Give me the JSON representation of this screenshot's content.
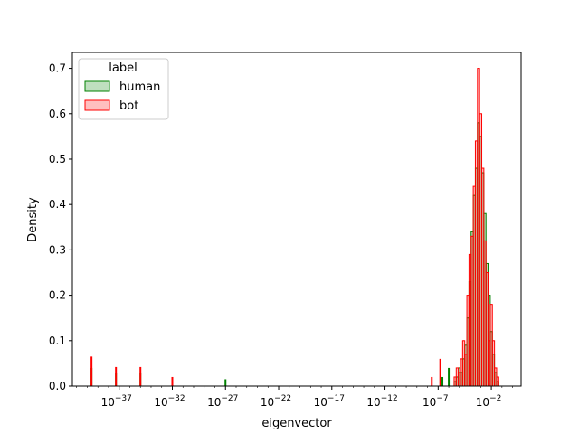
{
  "chart_data": {
    "type": "histogram",
    "title": "",
    "xlabel": "eigenvector",
    "ylabel": "Density",
    "xscale": "log",
    "xlim_log10": [
      -41.4,
      0.8
    ],
    "ylim": [
      0,
      0.735
    ],
    "grid": false,
    "x_ticks": [
      {
        "exp": -37,
        "base": "10",
        "sup": "−37"
      },
      {
        "exp": -32,
        "base": "10",
        "sup": "−32"
      },
      {
        "exp": -27,
        "base": "10",
        "sup": "−27"
      },
      {
        "exp": -22,
        "base": "10",
        "sup": "−22"
      },
      {
        "exp": -17,
        "base": "10",
        "sup": "−17"
      },
      {
        "exp": -12,
        "base": "10",
        "sup": "−12"
      },
      {
        "exp": -7,
        "base": "10",
        "sup": "−7"
      },
      {
        "exp": -2,
        "base": "10",
        "sup": "−2"
      }
    ],
    "y_ticks": [
      "0.0",
      "0.1",
      "0.2",
      "0.3",
      "0.4",
      "0.5",
      "0.6",
      "0.7"
    ],
    "y_tick_values": [
      0,
      0.1,
      0.2,
      0.3,
      0.4,
      0.5,
      0.6,
      0.7
    ],
    "legend": {
      "title": "label",
      "position": "upper left"
    },
    "series": [
      {
        "name": "human",
        "edge_color": "#008000",
        "fill_color": "#008000",
        "fill_opacity": 0.25,
        "spikes": [
          {
            "log10x": -39.6,
            "density": 0.04
          },
          {
            "log10x": -37.3,
            "density": 0.03
          },
          {
            "log10x": -35.0,
            "density": 0.03
          },
          {
            "log10x": -27.0,
            "density": 0.015
          },
          {
            "log10x": -6.6,
            "density": 0.02
          },
          {
            "log10x": -6.0,
            "density": 0.04
          }
        ],
        "hist": [
          {
            "log10x": -5.4,
            "density": 0.01
          },
          {
            "log10x": -5.2,
            "density": 0.02
          },
          {
            "log10x": -5.0,
            "density": 0.04
          },
          {
            "log10x": -4.8,
            "density": 0.03
          },
          {
            "log10x": -4.6,
            "density": 0.06
          },
          {
            "log10x": -4.4,
            "density": 0.09
          },
          {
            "log10x": -4.2,
            "density": 0.15
          },
          {
            "log10x": -4.0,
            "density": 0.23
          },
          {
            "log10x": -3.8,
            "density": 0.34
          },
          {
            "log10x": -3.6,
            "density": 0.42
          },
          {
            "log10x": -3.4,
            "density": 0.48
          },
          {
            "log10x": -3.2,
            "density": 0.58
          },
          {
            "log10x": -3.0,
            "density": 0.55
          },
          {
            "log10x": -2.8,
            "density": 0.47
          },
          {
            "log10x": -2.6,
            "density": 0.38
          },
          {
            "log10x": -2.4,
            "density": 0.27
          },
          {
            "log10x": -2.2,
            "density": 0.2
          },
          {
            "log10x": -2.0,
            "density": 0.12
          },
          {
            "log10x": -1.8,
            "density": 0.07
          },
          {
            "log10x": -1.6,
            "density": 0.03
          },
          {
            "log10x": -1.4,
            "density": 0.01
          }
        ]
      },
      {
        "name": "bot",
        "edge_color": "#ff0000",
        "fill_color": "#ff0000",
        "fill_opacity": 0.25,
        "spikes": [
          {
            "log10x": -39.6,
            "density": 0.065
          },
          {
            "log10x": -37.3,
            "density": 0.042
          },
          {
            "log10x": -35.0,
            "density": 0.042
          },
          {
            "log10x": -32.0,
            "density": 0.02
          },
          {
            "log10x": -7.6,
            "density": 0.02
          },
          {
            "log10x": -6.8,
            "density": 0.06
          }
        ],
        "hist": [
          {
            "log10x": -5.4,
            "density": 0.02
          },
          {
            "log10x": -5.2,
            "density": 0.04
          },
          {
            "log10x": -5.0,
            "density": 0.03
          },
          {
            "log10x": -4.8,
            "density": 0.06
          },
          {
            "log10x": -4.6,
            "density": 0.1
          },
          {
            "log10x": -4.4,
            "density": 0.07
          },
          {
            "log10x": -4.2,
            "density": 0.2
          },
          {
            "log10x": -4.0,
            "density": 0.29
          },
          {
            "log10x": -3.8,
            "density": 0.33
          },
          {
            "log10x": -3.6,
            "density": 0.44
          },
          {
            "log10x": -3.4,
            "density": 0.54
          },
          {
            "log10x": -3.2,
            "density": 0.7
          },
          {
            "log10x": -3.0,
            "density": 0.6
          },
          {
            "log10x": -2.8,
            "density": 0.48
          },
          {
            "log10x": -2.6,
            "density": 0.32
          },
          {
            "log10x": -2.4,
            "density": 0.25
          },
          {
            "log10x": -2.2,
            "density": 0.1
          },
          {
            "log10x": -2.0,
            "density": 0.18
          },
          {
            "log10x": -1.8,
            "density": 0.1
          },
          {
            "log10x": -1.6,
            "density": 0.04
          },
          {
            "log10x": -1.4,
            "density": 0.02
          }
        ]
      }
    ]
  }
}
